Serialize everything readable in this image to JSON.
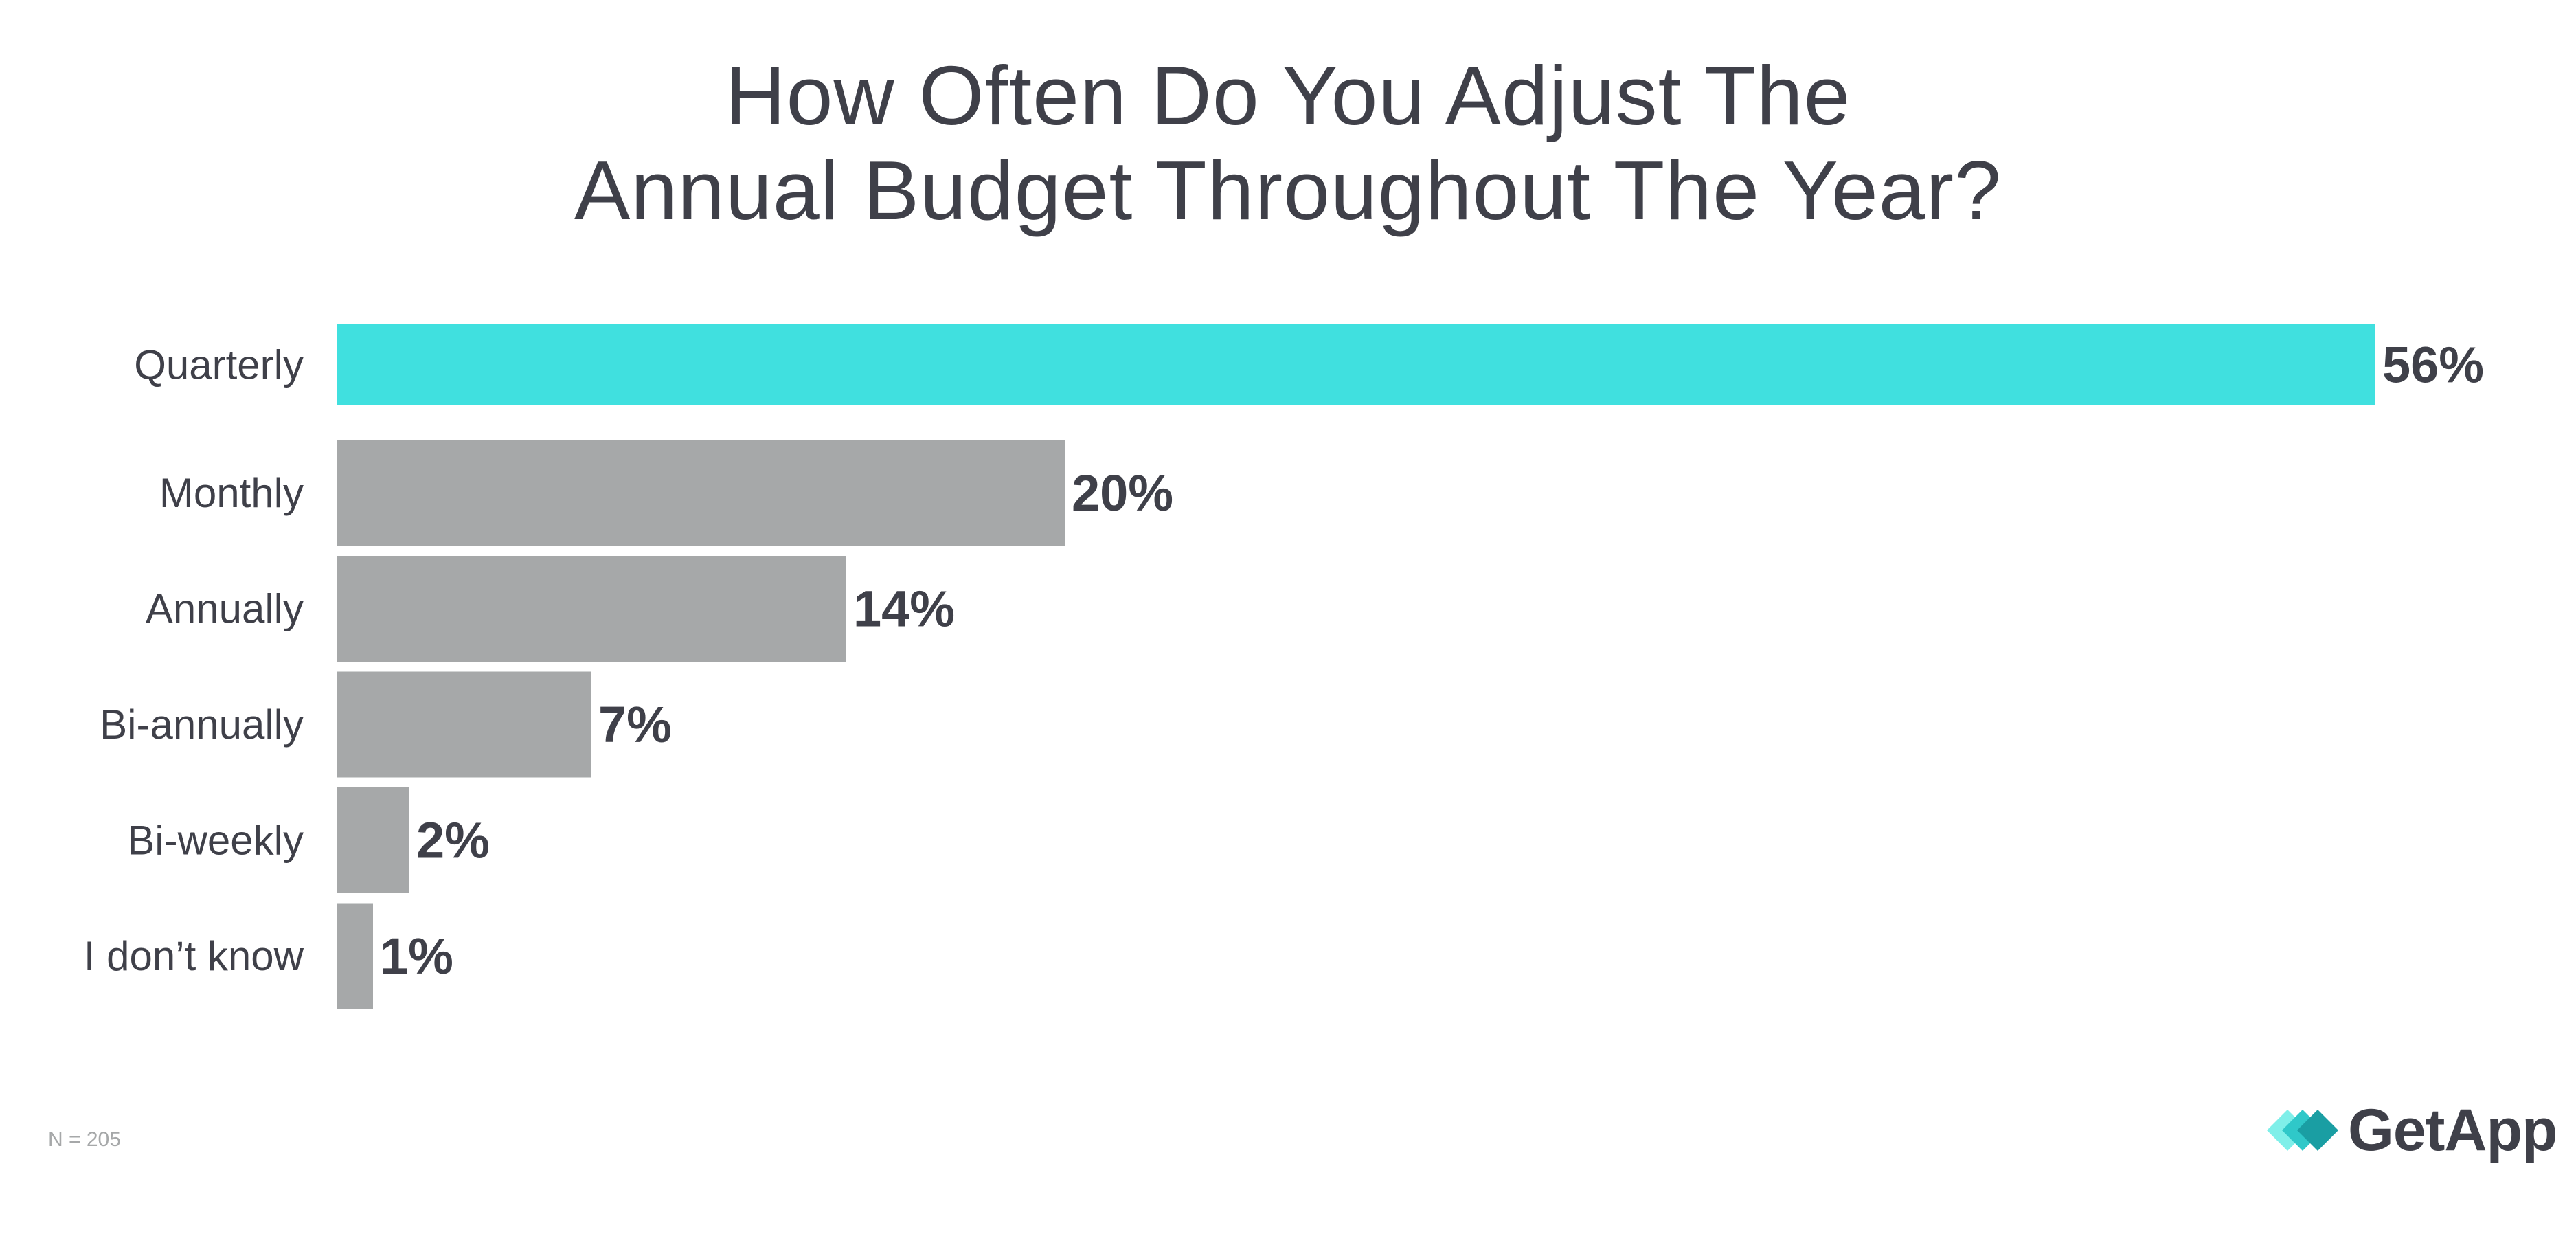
{
  "title_lines": [
    "How Often Do You Adjust The",
    "Annual Budget Throughout The Year?"
  ],
  "footnote": "N = 205",
  "brand": {
    "name": "GetApp",
    "icon": "getapp-logo-icon"
  },
  "colors": {
    "highlight": "#40e0df",
    "bar": "#a6a8a9",
    "text": "#3f4049"
  },
  "chart_data": {
    "type": "bar",
    "orientation": "horizontal",
    "title": "How Often Do You Adjust The Annual Budget Throughout The Year?",
    "categories": [
      "Quarterly",
      "Monthly",
      "Annually",
      "Bi-annually",
      "Bi-weekly",
      "I don’t know"
    ],
    "values": [
      56,
      20,
      14,
      7,
      2,
      1
    ],
    "data_labels": [
      "56%",
      "20%",
      "14%",
      "7%",
      "2%",
      "1%"
    ],
    "highlight_index": 0,
    "xlim": [
      0,
      56
    ],
    "grid": false,
    "legend": "none"
  }
}
